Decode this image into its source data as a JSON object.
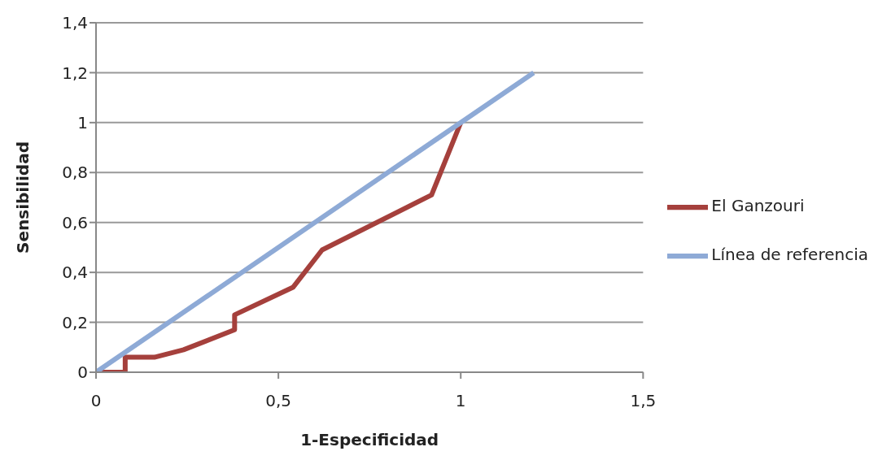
{
  "chart_data": {
    "type": "line",
    "xlabel": "1-Especificidad",
    "ylabel": "Sensibilidad",
    "series": [
      {
        "name": "El Ganzouri",
        "color": "#a5403c",
        "x": [
          0,
          0.08,
          0.08,
          0.16,
          0.24,
          0.38,
          0.38,
          0.54,
          0.62,
          0.92,
          1
        ],
        "values": [
          0,
          0,
          0.06,
          0.06,
          0.09,
          0.17,
          0.23,
          0.34,
          0.49,
          0.71,
          1
        ]
      },
      {
        "name": "Línea de referencia",
        "color": "#8eaad6",
        "x": [
          0,
          1.2
        ],
        "values": [
          0,
          1.2
        ]
      }
    ],
    "xlim": [
      0,
      1.5
    ],
    "xticks": [
      {
        "value": 0,
        "label": "0"
      },
      {
        "value": 0.5,
        "label": "0,5"
      },
      {
        "value": 1,
        "label": "1"
      },
      {
        "value": 1.5,
        "label": "1,5"
      }
    ],
    "ylim": [
      0,
      1.4
    ],
    "yticks": [
      {
        "value": 0,
        "label": "0"
      },
      {
        "value": 0.2,
        "label": "0,2"
      },
      {
        "value": 0.4,
        "label": "0,4"
      },
      {
        "value": 0.6,
        "label": "0,6"
      },
      {
        "value": 0.8,
        "label": "0,8"
      },
      {
        "value": 1,
        "label": "1"
      },
      {
        "value": 1.2,
        "label": "1,2"
      },
      {
        "value": 1.4,
        "label": "1,4"
      }
    ],
    "grid": "y",
    "legend": "right",
    "marker": "none",
    "line_style": "solid"
  }
}
